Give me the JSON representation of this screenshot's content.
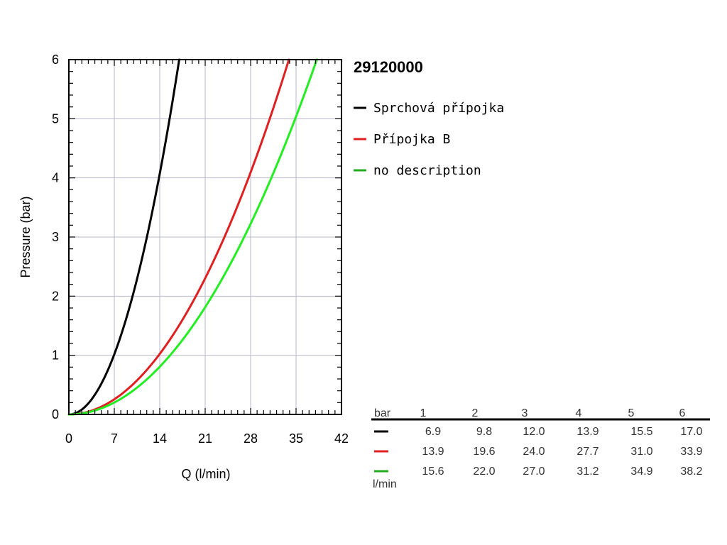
{
  "chart_data": {
    "type": "line",
    "title": "29120000",
    "xlabel": "Q (l/min)",
    "ylabel": "Pressure (bar)",
    "xlim": [
      0,
      42
    ],
    "ylim": [
      0,
      6
    ],
    "x_ticks": [
      "0",
      "7",
      "14",
      "21",
      "28",
      "35",
      "42"
    ],
    "y_ticks": [
      "0",
      "1",
      "2",
      "3",
      "4",
      "5",
      "6"
    ],
    "grid": true,
    "legend_position": "right",
    "series": [
      {
        "name": "Sprchová přípojka",
        "color": "#000000",
        "pressure": [
          1,
          2,
          3,
          4,
          5,
          6
        ],
        "flow": [
          6.9,
          9.8,
          12.0,
          13.9,
          15.5,
          17.0
        ]
      },
      {
        "name": "Přípojka B",
        "color": "#e02020",
        "pressure": [
          1,
          2,
          3,
          4,
          5,
          6
        ],
        "flow": [
          13.9,
          19.6,
          24.0,
          27.7,
          31.0,
          33.9
        ]
      },
      {
        "name": "no description",
        "color": "#22ee22",
        "pressure": [
          1,
          2,
          3,
          4,
          5,
          6
        ],
        "flow": [
          15.6,
          22.0,
          27.0,
          31.2,
          34.9,
          38.2
        ]
      }
    ],
    "table": {
      "header_label": "bar",
      "unit_label": "l/min",
      "pressures": [
        "1",
        "2",
        "3",
        "4",
        "5",
        "6"
      ],
      "rows": [
        {
          "color": "#000000",
          "values": [
            "6.9",
            "9.8",
            "12.0",
            "13.9",
            "15.5",
            "17.0"
          ]
        },
        {
          "color": "#e02020",
          "values": [
            "13.9",
            "19.6",
            "24.0",
            "27.7",
            "31.0",
            "33.9"
          ]
        },
        {
          "color": "#22aa22",
          "values": [
            "15.6",
            "22.0",
            "27.0",
            "31.2",
            "34.9",
            "38.2"
          ]
        }
      ]
    }
  }
}
